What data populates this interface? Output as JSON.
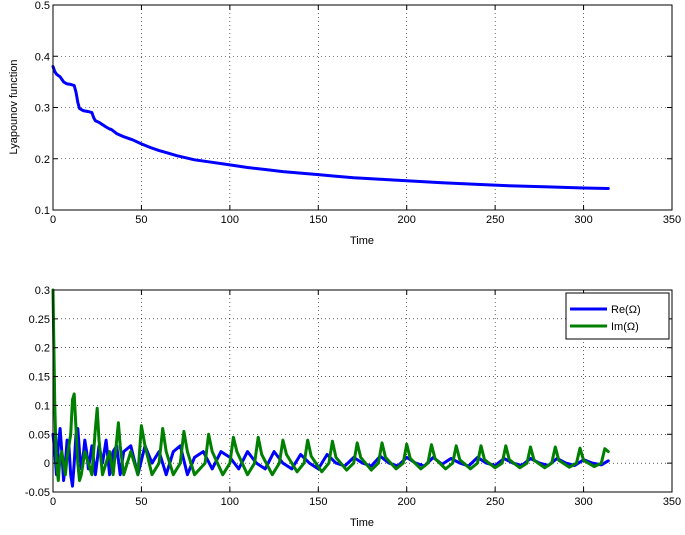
{
  "chart_data": [
    {
      "type": "line",
      "title": "",
      "xlabel": "Time",
      "ylabel": "Lyapounov function",
      "xlim": [
        0,
        350
      ],
      "ylim": [
        0.1,
        0.5
      ],
      "xticks": [
        0,
        50,
        100,
        150,
        200,
        250,
        300,
        350
      ],
      "yticks": [
        0.1,
        0.2,
        0.3,
        0.4,
        0.5
      ],
      "xtick_labels": [
        "0",
        "50",
        "100",
        "150",
        "200",
        "250",
        "300",
        "350"
      ],
      "ytick_labels": [
        "0.1",
        "0.2",
        "0.3",
        "0.4",
        "0.5"
      ],
      "grid": true,
      "legend": "none",
      "series": [
        {
          "color": "#0000ff",
          "x": [
            0,
            1,
            2,
            4,
            6,
            8,
            10,
            12,
            13,
            14,
            15,
            17,
            20,
            22,
            23,
            24,
            26,
            30,
            32,
            33,
            36,
            40,
            45,
            50,
            55,
            60,
            65,
            70,
            80,
            90,
            100,
            110,
            120,
            130,
            140,
            150,
            160,
            170,
            180,
            190,
            200,
            220,
            240,
            260,
            280,
            300,
            314
          ],
          "y": [
            0.38,
            0.37,
            0.365,
            0.36,
            0.35,
            0.346,
            0.345,
            0.343,
            0.33,
            0.31,
            0.298,
            0.294,
            0.292,
            0.29,
            0.28,
            0.274,
            0.271,
            0.262,
            0.258,
            0.257,
            0.249,
            0.243,
            0.237,
            0.229,
            0.222,
            0.216,
            0.211,
            0.206,
            0.198,
            0.193,
            0.188,
            0.183,
            0.179,
            0.175,
            0.172,
            0.169,
            0.166,
            0.163,
            0.161,
            0.159,
            0.157,
            0.153,
            0.15,
            0.147,
            0.145,
            0.143,
            0.142
          ]
        }
      ]
    },
    {
      "type": "line",
      "title": "",
      "xlabel": "Time",
      "ylabel": "",
      "xlim": [
        0,
        350
      ],
      "ylim": [
        -0.05,
        0.3
      ],
      "xticks": [
        0,
        50,
        100,
        150,
        200,
        250,
        300,
        350
      ],
      "yticks": [
        -0.05,
        0,
        0.05,
        0.1,
        0.15,
        0.2,
        0.25,
        0.3
      ],
      "xtick_labels": [
        "0",
        "50",
        "100",
        "150",
        "200",
        "250",
        "300",
        "350"
      ],
      "ytick_labels": [
        "-0.05",
        "0",
        "0.05",
        "0.1",
        "0.15",
        "0.2",
        "0.25",
        "0.3"
      ],
      "grid": true,
      "legend": "top-right",
      "series": [
        {
          "name": "Re(Ω)",
          "color": "#0000ff",
          "x": [
            0,
            1,
            2,
            3,
            4,
            5,
            6,
            7,
            8,
            9,
            10,
            11,
            12,
            13,
            14,
            15,
            16,
            17,
            18,
            19,
            20,
            22,
            24,
            26,
            28,
            30,
            32,
            34,
            36,
            38,
            40,
            44,
            48,
            52,
            56,
            60,
            64,
            68,
            72,
            76,
            80,
            85,
            90,
            95,
            100,
            105,
            110,
            115,
            120,
            125,
            130,
            135,
            140,
            145,
            150,
            155,
            160,
            165,
            170,
            175,
            180,
            185,
            190,
            195,
            200,
            205,
            210,
            215,
            220,
            225,
            230,
            235,
            240,
            245,
            250,
            255,
            260,
            265,
            270,
            275,
            280,
            285,
            290,
            295,
            300,
            305,
            310,
            314
          ],
          "y": [
            0.05,
            0.02,
            -0.02,
            0.03,
            0.06,
            0.02,
            -0.03,
            0.0,
            0.04,
            0.03,
            -0.02,
            -0.04,
            0.0,
            0.05,
            0.06,
            0.02,
            -0.01,
            0.01,
            0.04,
            0.02,
            -0.01,
            0.03,
            -0.02,
            0.03,
            0.0,
            0.04,
            -0.02,
            0.02,
            0.03,
            -0.02,
            0.02,
            0.03,
            -0.02,
            0.03,
            0.0,
            0.02,
            -0.02,
            0.02,
            0.03,
            -0.02,
            0.01,
            0.02,
            -0.01,
            0.02,
            0.01,
            -0.01,
            0.02,
            0.0,
            -0.01,
            0.02,
            0.0,
            -0.01,
            0.015,
            0.0,
            -0.01,
            0.015,
            0.0,
            -0.005,
            0.01,
            0.0,
            -0.005,
            0.012,
            0.0,
            -0.005,
            0.01,
            0.0,
            -0.005,
            0.01,
            -0.002,
            0.008,
            0.0,
            -0.005,
            0.01,
            0.0,
            -0.004,
            0.008,
            0.0,
            -0.004,
            0.008,
            0.0,
            -0.004,
            0.008,
            0.0,
            -0.004,
            0.006,
            0.0,
            -0.003,
            0.004
          ]
        },
        {
          "name": "Im(Ω)",
          "color": "#008000",
          "x": [
            0,
            0.5,
            1,
            1.5,
            2,
            3,
            4,
            5,
            6,
            7,
            8,
            9,
            10,
            11,
            12,
            13,
            14,
            15,
            16,
            17,
            18,
            20,
            22,
            24,
            25,
            26,
            28,
            30,
            32,
            34,
            36,
            37,
            38,
            40,
            44,
            48,
            50,
            52,
            56,
            60,
            62,
            64,
            68,
            72,
            74,
            76,
            80,
            86,
            88,
            90,
            96,
            100,
            102,
            104,
            110,
            114,
            116,
            118,
            124,
            128,
            130,
            132,
            138,
            142,
            144,
            146,
            152,
            156,
            158,
            160,
            166,
            170,
            172,
            174,
            180,
            184,
            186,
            188,
            194,
            198,
            200,
            202,
            208,
            212,
            214,
            216,
            222,
            226,
            228,
            230,
            236,
            240,
            242,
            244,
            250,
            254,
            256,
            258,
            264,
            268,
            270,
            272,
            278,
            282,
            284,
            286,
            292,
            296,
            298,
            300,
            306,
            310,
            312,
            314
          ],
          "y": [
            0.3,
            0.2,
            0.1,
            0.04,
            0.0,
            -0.03,
            0.01,
            0.02,
            0.0,
            -0.02,
            0.01,
            0.03,
            0.05,
            0.11,
            0.12,
            0.06,
            0.0,
            -0.03,
            -0.02,
            0.0,
            0.02,
            0.0,
            -0.02,
            0.06,
            0.095,
            0.04,
            -0.02,
            0.0,
            0.02,
            -0.02,
            0.04,
            0.07,
            0.03,
            -0.02,
            0.02,
            -0.02,
            0.065,
            0.03,
            -0.02,
            0.0,
            0.06,
            0.02,
            -0.02,
            0.0,
            0.055,
            0.02,
            -0.02,
            0.0,
            0.05,
            0.02,
            -0.02,
            0.0,
            0.045,
            0.02,
            -0.02,
            0.0,
            0.045,
            0.015,
            -0.02,
            0.0,
            0.04,
            0.015,
            -0.015,
            0.0,
            0.04,
            0.012,
            -0.015,
            0.0,
            0.038,
            0.01,
            -0.012,
            0.0,
            0.035,
            0.01,
            -0.012,
            0.0,
            0.035,
            0.01,
            -0.01,
            0.0,
            0.033,
            0.008,
            -0.01,
            0.0,
            0.032,
            0.008,
            -0.01,
            0.0,
            0.03,
            0.006,
            -0.01,
            0.0,
            0.03,
            0.006,
            -0.008,
            0.0,
            0.03,
            0.006,
            -0.008,
            0.0,
            0.028,
            0.005,
            -0.008,
            0.0,
            0.028,
            0.005,
            -0.007,
            0.0,
            0.026,
            0.005,
            -0.006,
            0.0,
            0.025,
            0.02
          ]
        }
      ]
    }
  ]
}
